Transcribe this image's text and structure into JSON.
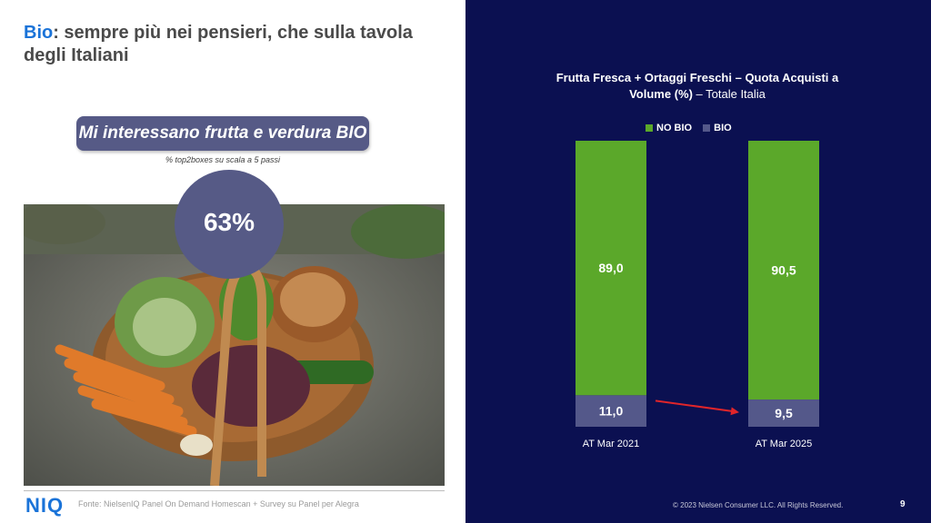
{
  "slide": {
    "title_accent": "Bio",
    "title_rest": ": sempre più nei pensieri, che sulla tavola degli Italiani"
  },
  "highlight": {
    "pill_text": "Mi interessano frutta e verdura BIO",
    "subtitle": "% top2boxes su scala a 5 passi",
    "value": "63%"
  },
  "footer": {
    "logo": "NIQ",
    "source": "Fonte: NielsenIQ Panel On Demand Homescan + Survey su Panel per Alegra",
    "copyright": "© 2023 Nielsen Consumer LLC. All Rights Reserved.",
    "page": "9"
  },
  "colors": {
    "no_bio": "#5ba82a",
    "bio": "#54588a",
    "arrow": "#e0252a",
    "right_bg": "#0b1051"
  },
  "chart_data": {
    "type": "bar",
    "stacked": true,
    "title_bold": "Frutta Fresca + Ortaggi Freschi – Quota Acquisti a Volume (%)",
    "title_rest": " – Totale Italia",
    "categories": [
      "AT Mar 2021",
      "AT Mar 2025"
    ],
    "series": [
      {
        "name": "BIO",
        "values": [
          11.0,
          9.5
        ],
        "labels": [
          "11,0",
          "9,5"
        ]
      },
      {
        "name": "NO BIO",
        "values": [
          89.0,
          90.5
        ],
        "labels": [
          "89,0",
          "90,5"
        ]
      }
    ],
    "legend": {
      "position": "top",
      "order": [
        "NO BIO",
        "BIO"
      ]
    },
    "ylim": [
      0,
      100
    ],
    "grid": false,
    "annotation": {
      "type": "arrow",
      "from": "AT Mar 2021 BIO",
      "to": "AT Mar 2025 BIO",
      "color": "#e0252a"
    }
  }
}
